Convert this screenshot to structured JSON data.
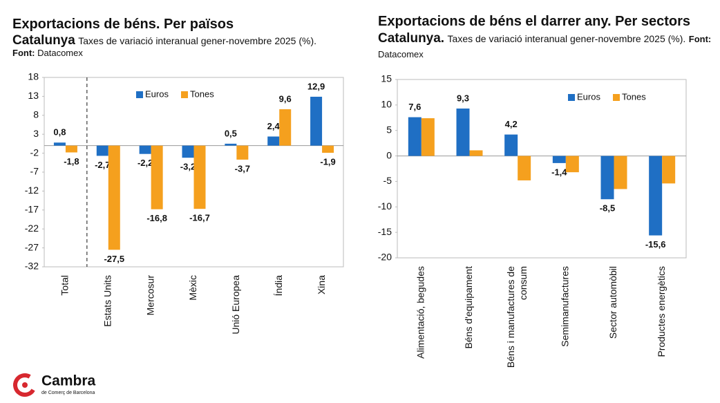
{
  "chart_data": [
    {
      "type": "bar",
      "title": "Exportacions de béns. Per països",
      "region": "Catalunya",
      "subtitle": "Taxes de variació interanual gener-novembre 2025 (%).",
      "source_label": "Font:",
      "source": "Datacomex",
      "categories": [
        "Total",
        "Estats Units",
        "Mercosur",
        "Mèxic",
        "Unió Europea",
        "Índia",
        "Xina"
      ],
      "series": [
        {
          "name": "Euros",
          "color": "#1f6fc4",
          "values": [
            0.8,
            -2.7,
            -2.2,
            -3.2,
            0.5,
            2.4,
            12.9
          ],
          "value_labels": [
            "0,8",
            "-2,7",
            "-2,2",
            "-3,2",
            "0,5",
            "2,4",
            "12,9"
          ]
        },
        {
          "name": "Tones",
          "color": "#f5a01e",
          "values": [
            -1.8,
            -27.5,
            -16.8,
            -16.7,
            -3.7,
            9.6,
            -1.9
          ],
          "value_labels": [
            "-1,8",
            "-27,5",
            "-16,8",
            "-16,7",
            "-3,7",
            "9,6",
            "-1,9"
          ]
        }
      ],
      "ylim": [
        -32,
        18
      ],
      "yticks": [
        18,
        13,
        8,
        3,
        -2,
        -7,
        -12,
        -17,
        -22,
        -27,
        -32
      ],
      "legend": "top"
    },
    {
      "type": "bar",
      "title": "Exportacions de béns el darrer any. Per sectors",
      "region": "Catalunya.",
      "subtitle": "Taxes de variació interanual gener-novembre 2025 (%).",
      "source_label": "Font:",
      "source": "Datacomex",
      "categories": [
        "Alimentació, begudes",
        "Béns d'equipament",
        "Béns i manufactures de consum",
        "Semimanufactures",
        "Sector automòbil",
        "Productes energètics"
      ],
      "series": [
        {
          "name": "Euros",
          "color": "#1f6fc4",
          "values": [
            7.6,
            9.3,
            4.2,
            -1.4,
            -8.5,
            -15.6
          ],
          "value_labels": [
            "7,6",
            "9,3",
            "4,2",
            "-1,4",
            "-8,5",
            "-15,6"
          ]
        },
        {
          "name": "Tones",
          "color": "#f5a01e",
          "values": [
            7.4,
            1.1,
            -4.8,
            -3.2,
            -6.5,
            -5.4
          ]
        }
      ],
      "ylim": [
        -20,
        15
      ],
      "yticks": [
        15,
        10,
        5,
        0,
        -5,
        -10,
        -15,
        -20
      ],
      "legend": "top-right"
    }
  ],
  "logo": {
    "name": "Cambra",
    "tagline": "de Comerç de Barcelona"
  }
}
